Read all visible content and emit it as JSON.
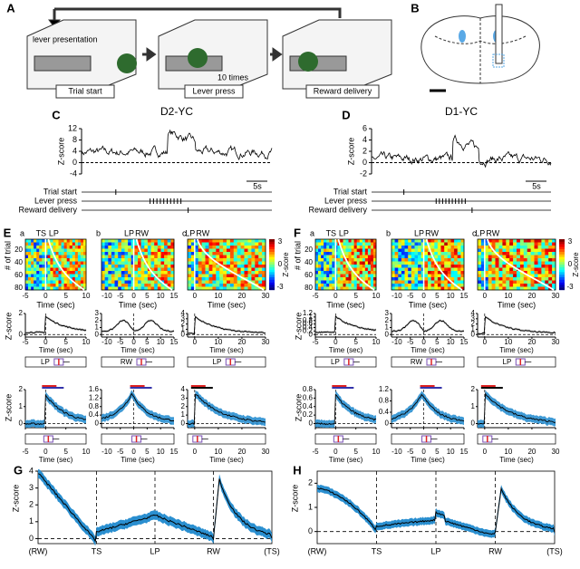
{
  "panel_A": {
    "label": "A",
    "lever_text": "lever presentation",
    "repeat_text": "10 times",
    "steps": [
      "Trial start",
      "Lever press",
      "Reward delivery"
    ]
  },
  "panel_B": {
    "label": "B"
  },
  "traces": [
    {
      "label": "C",
      "title": "D2-YC",
      "ylabel": "Z-score",
      "ylim": [
        -4,
        12
      ],
      "yticks": [
        -4,
        0,
        4,
        8,
        12
      ],
      "scale_bar": "5s",
      "events": [
        "Trial start",
        "Lever press",
        "Reward delivery"
      ]
    },
    {
      "label": "D",
      "title": "D1-YC",
      "ylabel": "Z-score",
      "ylim": [
        -2,
        6
      ],
      "yticks": [
        -2,
        0,
        2,
        4,
        6
      ],
      "scale_bar": "5s",
      "events": [
        "Trial start",
        "Lever press",
        "Reward delivery"
      ]
    }
  ],
  "xlabel": "Time (sec)",
  "ylabel": "Z-score",
  "heatmap_ylabel": "# of trial",
  "heatmap_yticks": [
    20,
    40,
    60,
    80
  ],
  "colorbar_ticks": [
    3,
    0,
    -3
  ],
  "averages": [
    {
      "label": "E",
      "columns": [
        {
          "label": "a",
          "markers": [
            "TS",
            "LP"
          ],
          "xlim": [
            -5,
            10
          ],
          "xticks": [
            -5,
            0,
            5,
            10
          ],
          "row2_yticks": [
            0,
            2
          ],
          "box_label": "LP",
          "row3_yticks": [
            0,
            1,
            2
          ]
        },
        {
          "label": "b",
          "markers": [
            "LP",
            "RW"
          ],
          "xlim": [
            -12,
            15
          ],
          "xticks": [
            -10,
            -5,
            0,
            5,
            10,
            15
          ],
          "row2_yticks": [
            0,
            1,
            2,
            3
          ],
          "box_label": "RW",
          "row3_yticks": [
            0,
            0.4,
            0.8,
            1.2,
            1.6
          ]
        },
        {
          "label": "c",
          "markers": [
            "LP",
            "RW"
          ],
          "xlim": [
            -3,
            30
          ],
          "xticks": [
            0,
            10,
            20,
            30
          ],
          "row2_yticks": [
            0,
            1,
            2,
            3,
            4
          ],
          "box_label": "LP",
          "row3_yticks": [
            0,
            1,
            2,
            3,
            4
          ]
        }
      ]
    },
    {
      "label": "F",
      "columns": [
        {
          "label": "a",
          "markers": [
            "TS",
            "LP"
          ],
          "xlim": [
            -5,
            10
          ],
          "xticks": [
            -5,
            0,
            5,
            10
          ],
          "row2_yticks": [
            0,
            0.2,
            0.4,
            0.6,
            0.8,
            1,
            1.2
          ],
          "box_label": "LP",
          "row3_yticks": [
            0,
            0.2,
            0.4,
            0.6,
            0.8
          ]
        },
        {
          "label": "b",
          "markers": [
            "LP",
            "RW"
          ],
          "xlim": [
            -12,
            15
          ],
          "xticks": [
            -10,
            -5,
            0,
            5,
            10,
            15
          ],
          "row2_yticks": [
            0,
            1,
            2,
            3
          ],
          "box_label": "RW",
          "row3_yticks": [
            0,
            0.4,
            0.8,
            1.2
          ]
        },
        {
          "label": "c",
          "markers": [
            "LP",
            "RW"
          ],
          "xlim": [
            -3,
            30
          ],
          "xticks": [
            0,
            10,
            20,
            30
          ],
          "row2_yticks": [
            0,
            1,
            2,
            3,
            4
          ],
          "box_label": "LP",
          "row3_yticks": [
            0,
            1,
            2
          ]
        }
      ]
    }
  ],
  "summary": [
    {
      "label": "G",
      "ylabel": "Z-score",
      "ylim": [
        -0.3,
        4
      ],
      "yticks": [
        0,
        1,
        2,
        3,
        4
      ],
      "xlabels": [
        "(RW)",
        "TS",
        "LP",
        "RW",
        "(TS)"
      ]
    },
    {
      "label": "H",
      "ylabel": "Z-score",
      "ylim": [
        -0.5,
        2.5
      ],
      "yticks": [
        0,
        1,
        2
      ],
      "xlabels": [
        "(RW)",
        "TS",
        "LP",
        "RW",
        "(TS)"
      ]
    }
  ]
}
